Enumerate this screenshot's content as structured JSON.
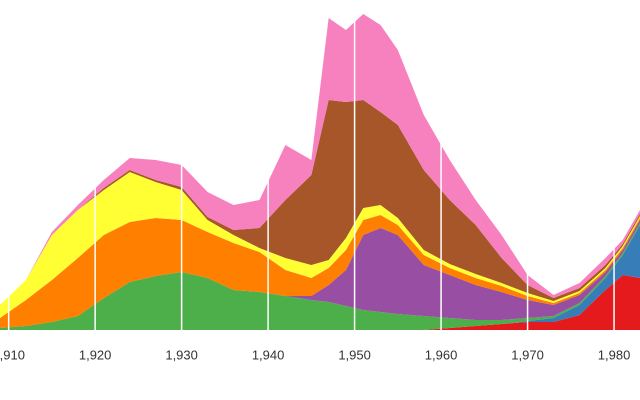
{
  "chart_data": {
    "type": "stacked-area",
    "x": [
      1909,
      1912,
      1915,
      1918,
      1921,
      1924,
      1927,
      1930,
      1933,
      1936,
      1939,
      1942,
      1945,
      1947,
      1949,
      1951,
      1953,
      1955,
      1958,
      1961,
      1964,
      1967,
      1970,
      1973,
      1976,
      1979,
      1981,
      1983
    ],
    "series": [
      {
        "color": "#e41a1c",
        "values": [
          0,
          0,
          0,
          0,
          0,
          0,
          0,
          0,
          0,
          0,
          0,
          0,
          0,
          0,
          0,
          0,
          0,
          0,
          0,
          2,
          4,
          6,
          8,
          8,
          15,
          40,
          55,
          52
        ]
      },
      {
        "color": "#377eb8",
        "values": [
          0,
          0,
          0,
          0,
          0,
          0,
          0,
          0,
          0,
          0,
          0,
          0,
          0,
          0,
          0,
          0,
          0,
          0,
          0,
          0,
          0,
          0,
          1,
          4,
          10,
          12,
          20,
          53
        ]
      },
      {
        "color": "#4daf4a",
        "values": [
          2,
          4,
          8,
          14,
          32,
          48,
          54,
          58,
          52,
          40,
          38,
          34,
          30,
          28,
          24,
          20,
          18,
          16,
          14,
          10,
          6,
          4,
          3,
          2,
          2,
          2,
          2,
          2
        ]
      },
      {
        "color": "#984ea3",
        "values": [
          0,
          0,
          0,
          0,
          0,
          0,
          0,
          0,
          0,
          0,
          0,
          0,
          4,
          17,
          36,
          75,
          84,
          79,
          51,
          43,
          35,
          28,
          18,
          11,
          8,
          4,
          3,
          3
        ]
      },
      {
        "color": "#ff7f00",
        "values": [
          10,
          26,
          42,
          58,
          63,
          60,
          58,
          52,
          46,
          47,
          40,
          26,
          18,
          17,
          20,
          15,
          13,
          10,
          10,
          7,
          7,
          6,
          4,
          2,
          2,
          2,
          2,
          2
        ]
      },
      {
        "color": "#ffff33",
        "values": [
          13,
          20,
          45,
          48,
          45,
          50,
          36,
          30,
          12,
          8,
          4,
          12,
          13,
          8,
          12,
          12,
          10,
          7,
          5,
          4,
          4,
          3,
          3,
          2,
          2,
          2,
          2,
          2
        ]
      },
      {
        "color": "#a65628",
        "values": [
          0,
          0,
          0,
          0,
          2,
          2,
          2,
          3,
          3,
          5,
          20,
          58,
          90,
          160,
          136,
          108,
          93,
          93,
          80,
          64,
          49,
          25,
          8,
          3,
          3,
          3,
          2,
          2
        ]
      },
      {
        "color": "#f781bf",
        "values": [
          0,
          0,
          3,
          5,
          8,
          12,
          20,
          22,
          25,
          25,
          28,
          55,
          15,
          82,
          72,
          86,
          87,
          75,
          55,
          40,
          25,
          23,
          10,
          3,
          5,
          7,
          4,
          4
        ]
      }
    ],
    "xlim": [
      1909,
      1983
    ],
    "ylim": [
      0,
      320
    ],
    "xticks": [
      {
        "value": 1910,
        "label": "1,910"
      },
      {
        "value": 1920,
        "label": "1,920"
      },
      {
        "value": 1930,
        "label": "1,930"
      },
      {
        "value": 1940,
        "label": "1,940"
      },
      {
        "value": 1950,
        "label": "1,950"
      },
      {
        "value": 1960,
        "label": "1,960"
      },
      {
        "value": 1970,
        "label": "1,970"
      },
      {
        "value": 1980,
        "label": "1,980"
      }
    ],
    "grid": true
  }
}
